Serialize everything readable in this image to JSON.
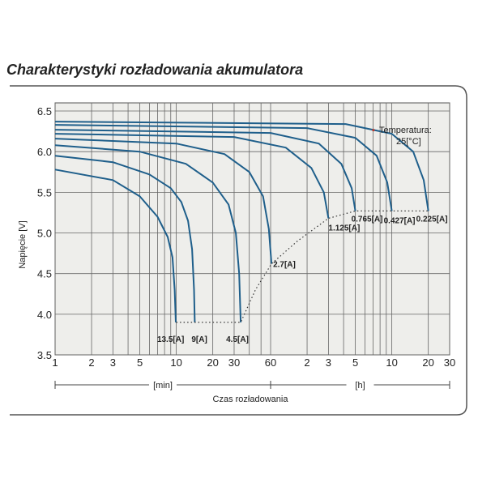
{
  "chart_data": {
    "type": "line",
    "title": "Charakterystyki rozładowania akumulatora",
    "xlabel": "Czas rozładowania",
    "ylabel": "Napięcie [V]",
    "x_scale": "log",
    "x_unit_groups": [
      {
        "label": "[min]",
        "from_minutes": 1,
        "to_minutes": 60
      },
      {
        "label": "[h]",
        "from_minutes": 60,
        "to_minutes": 1800
      }
    ],
    "x_ticks": [
      {
        "label": "1",
        "minutes": 1
      },
      {
        "label": "2",
        "minutes": 2
      },
      {
        "label": "3",
        "minutes": 3
      },
      {
        "label": "5",
        "minutes": 5
      },
      {
        "label": "10",
        "minutes": 10
      },
      {
        "label": "20",
        "minutes": 20
      },
      {
        "label": "30",
        "minutes": 30
      },
      {
        "label": "60",
        "minutes": 60
      },
      {
        "label": "2",
        "minutes": 120
      },
      {
        "label": "3",
        "minutes": 180
      },
      {
        "label": "5",
        "minutes": 300
      },
      {
        "label": "10",
        "minutes": 600
      },
      {
        "label": "20",
        "minutes": 1200
      },
      {
        "label": "30",
        "minutes": 1800
      }
    ],
    "x_grid_minutes": [
      1,
      2,
      3,
      4,
      5,
      6,
      7,
      8,
      9,
      10,
      20,
      30,
      40,
      50,
      60,
      120,
      180,
      240,
      300,
      360,
      420,
      480,
      540,
      600,
      1200,
      1800
    ],
    "y_ticks": [
      "3.5",
      "4.0",
      "4.5",
      "5.0",
      "5.5",
      "6.0",
      "6.5"
    ],
    "ylim": [
      3.5,
      6.6
    ],
    "grid": true,
    "annotation": {
      "marker": "▪",
      "text_line1": "Temperatura:",
      "text_line2": "25[°C]"
    },
    "series": [
      {
        "name": "13.5[A]",
        "points": [
          [
            1,
            5.78
          ],
          [
            3,
            5.65
          ],
          [
            5,
            5.45
          ],
          [
            7,
            5.2
          ],
          [
            8.5,
            4.95
          ],
          [
            9.3,
            4.7
          ],
          [
            9.7,
            4.3
          ],
          [
            9.9,
            3.9
          ]
        ]
      },
      {
        "name": "9[A]",
        "points": [
          [
            1,
            5.95
          ],
          [
            3,
            5.87
          ],
          [
            6,
            5.72
          ],
          [
            9,
            5.55
          ],
          [
            11,
            5.38
          ],
          [
            12.5,
            5.15
          ],
          [
            13.5,
            4.8
          ],
          [
            14,
            4.3
          ],
          [
            14.2,
            3.9
          ]
        ]
      },
      {
        "name": "4.5[A]",
        "points": [
          [
            1,
            6.08
          ],
          [
            5,
            6.0
          ],
          [
            12,
            5.85
          ],
          [
            20,
            5.62
          ],
          [
            27,
            5.35
          ],
          [
            31,
            5.0
          ],
          [
            33,
            4.5
          ],
          [
            34,
            3.9
          ]
        ]
      },
      {
        "name": "2.7[A]",
        "points": [
          [
            1,
            6.16
          ],
          [
            10,
            6.1
          ],
          [
            25,
            5.97
          ],
          [
            40,
            5.75
          ],
          [
            52,
            5.45
          ],
          [
            58,
            5.05
          ],
          [
            61,
            4.62
          ]
        ]
      },
      {
        "name": "1.125[A]",
        "points": [
          [
            1,
            6.22
          ],
          [
            30,
            6.18
          ],
          [
            80,
            6.05
          ],
          [
            130,
            5.8
          ],
          [
            165,
            5.5
          ],
          [
            180,
            5.18
          ]
        ]
      },
      {
        "name": "0.765[A]",
        "points": [
          [
            1,
            6.27
          ],
          [
            60,
            6.23
          ],
          [
            150,
            6.1
          ],
          [
            230,
            5.85
          ],
          [
            280,
            5.55
          ],
          [
            300,
            5.27
          ]
        ]
      },
      {
        "name": "0.427[A]",
        "points": [
          [
            1,
            6.33
          ],
          [
            120,
            6.29
          ],
          [
            300,
            6.17
          ],
          [
            450,
            5.95
          ],
          [
            550,
            5.62
          ],
          [
            600,
            5.27
          ]
        ]
      },
      {
        "name": "0.225[A]",
        "points": [
          [
            1,
            6.37
          ],
          [
            250,
            6.34
          ],
          [
            600,
            6.22
          ],
          [
            900,
            6.0
          ],
          [
            1100,
            5.65
          ],
          [
            1200,
            5.27
          ]
        ]
      }
    ],
    "end_voltage_line": [
      [
        10,
        3.9
      ],
      [
        14.2,
        3.9
      ],
      [
        34,
        3.9
      ],
      [
        45,
        4.3
      ],
      [
        61,
        4.62
      ],
      [
        100,
        4.9
      ],
      [
        180,
        5.18
      ],
      [
        300,
        5.27
      ],
      [
        600,
        5.27
      ],
      [
        1200,
        5.27
      ]
    ]
  }
}
